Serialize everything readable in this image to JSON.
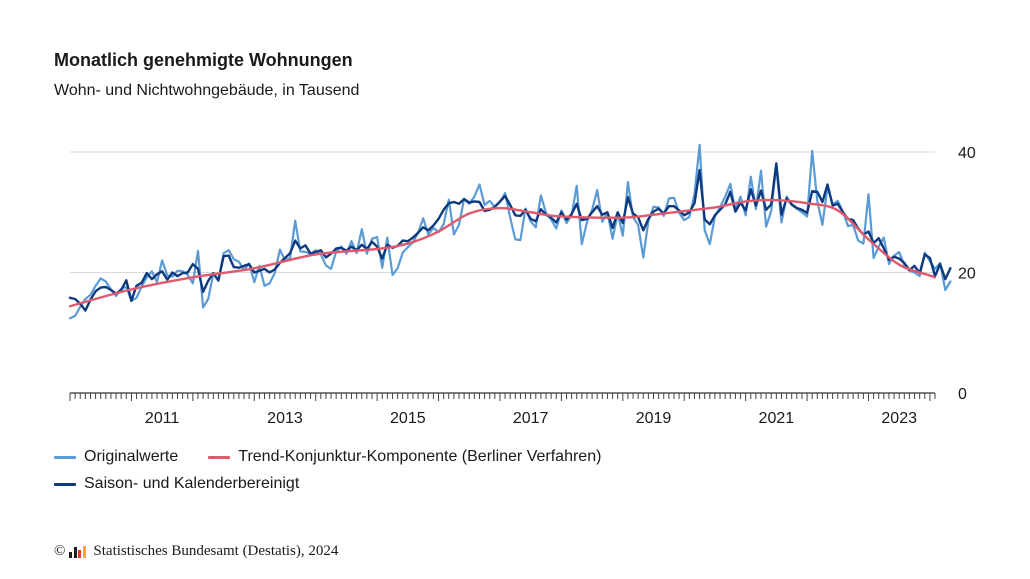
{
  "title": "Monatlich genehmigte Wohnungen",
  "subtitle": "Wohn- und Nichtwohngebäude, in Tausend",
  "footer": {
    "copyright_symbol": "©",
    "source": "Statistisches Bundesamt (Destatis), 2024"
  },
  "colors": {
    "original": "#5b9bd5",
    "trend": "#e05a6e",
    "adjusted": "#0d3a7e",
    "grid": "#d9d9d9",
    "logo": [
      "#e3342f",
      "#f2b01e",
      "#1d1d1d"
    ]
  },
  "chart_data": {
    "type": "line",
    "title": "Monatlich genehmigte Wohnungen",
    "subtitle": "Wohn- und Nichtwohngebäude, in Tausend",
    "x_range": [
      "2010-01",
      "2024-02"
    ],
    "xticks": [
      "2011",
      "2013",
      "2015",
      "2017",
      "2019",
      "2021",
      "2023"
    ],
    "yticks": [
      0,
      20,
      40
    ],
    "ylim": [
      0,
      40
    ],
    "grid": true,
    "y_axis_position": "right",
    "legend_position": "bottom",
    "series": [
      {
        "name": "Originalwerte",
        "color": "#5b9bd5",
        "width": 2.2,
        "values": [
          12.4,
          12.8,
          14.3,
          15.6,
          16.3,
          17.8,
          19.0,
          18.5,
          17.2,
          16.1,
          17.3,
          17.6,
          15.3,
          15.8,
          17.7,
          19.2,
          20.2,
          18.4,
          22.0,
          19.5,
          19.3,
          20.3,
          20.2,
          19.6,
          18.2,
          23.6,
          14.2,
          15.6,
          19.8,
          18.6,
          23.2,
          23.7,
          22.2,
          21.8,
          20.4,
          21.5,
          18.4,
          21.1,
          17.8,
          18.2,
          19.9,
          23.8,
          22.0,
          22.4,
          28.6,
          23.5,
          23.4,
          23.1,
          23.7,
          23.0,
          21.2,
          20.6,
          23.5,
          24.3,
          23.1,
          25.2,
          23.2,
          27.2,
          23.1,
          25.6,
          25.9,
          20.8,
          25.8,
          19.6,
          20.7,
          23.3,
          24.2,
          25.0,
          26.6,
          29.0,
          26.3,
          27.4,
          26.7,
          28.0,
          32.1,
          26.3,
          27.9,
          32.2,
          31.4,
          32.6,
          34.6,
          31.2,
          31.9,
          30.9,
          31.7,
          33.2,
          29.1,
          25.5,
          25.4,
          30.6,
          28.5,
          27.5,
          32.8,
          29.9,
          28.8,
          27.3,
          30.3,
          28.2,
          29.5,
          34.4,
          24.7,
          28.4,
          30.4,
          33.7,
          28.4,
          30.0,
          25.6,
          29.8,
          26.1,
          35.0,
          29.2,
          27.9,
          22.5,
          28.6,
          30.9,
          30.8,
          29.4,
          32.3,
          32.4,
          29.9,
          28.7,
          29.2,
          33.0,
          41.2,
          27.0,
          24.7,
          29.3,
          30.8,
          32.6,
          34.7,
          30.4,
          32.6,
          29.5,
          35.9,
          30.5,
          36.9,
          27.6,
          30.2,
          37.8,
          28.3,
          32.6,
          31.2,
          30.6,
          30.0,
          29.3,
          40.2,
          31.9,
          27.9,
          34.2,
          31.3,
          31.9,
          30.1,
          27.7,
          27.9,
          25.3,
          24.8,
          33.0,
          22.4,
          24.3,
          25.8,
          21.4,
          22.8,
          23.4,
          21.2,
          20.3,
          20.0,
          19.4,
          23.3,
          21.9,
          20.6,
          21.6,
          17.1,
          18.5
        ]
      },
      {
        "name": "Trend-Konjunktur-Komponente (Berliner Verfahren)",
        "color": "#e05a6e",
        "width": 2.4,
        "points": [
          [
            2010.0,
            14.4
          ],
          [
            2011.0,
            17.2
          ],
          [
            2012.0,
            19.2
          ],
          [
            2013.0,
            20.7
          ],
          [
            2014.0,
            23.0
          ],
          [
            2015.0,
            23.9
          ],
          [
            2015.5,
            24.8
          ],
          [
            2016.0,
            26.8
          ],
          [
            2016.5,
            29.8
          ],
          [
            2017.0,
            30.7
          ],
          [
            2017.5,
            30.0
          ],
          [
            2018.0,
            29.3
          ],
          [
            2019.0,
            29.1
          ],
          [
            2019.5,
            29.6
          ],
          [
            2020.0,
            30.2
          ],
          [
            2020.5,
            30.8
          ],
          [
            2021.0,
            31.8
          ],
          [
            2021.5,
            32.0
          ],
          [
            2022.0,
            31.5
          ],
          [
            2022.5,
            30.3
          ],
          [
            2023.0,
            25.5
          ],
          [
            2023.5,
            21.3
          ],
          [
            2024.0,
            19.5
          ],
          [
            2024.08,
            19.2
          ]
        ]
      },
      {
        "name": "Saison- und Kalenderbereinigt",
        "color": "#0d3a7e",
        "width": 2.4,
        "values": [
          15.8,
          15.6,
          14.8,
          13.7,
          15.5,
          16.9,
          17.5,
          17.6,
          17.1,
          16.5,
          17.1,
          18.7,
          15.3,
          17.8,
          18.3,
          19.9,
          18.9,
          19.7,
          20.2,
          18.8,
          20.0,
          19.4,
          19.9,
          20.0,
          21.4,
          20.6,
          16.8,
          18.6,
          19.9,
          18.7,
          22.7,
          22.8,
          20.9,
          20.8,
          21.1,
          21.4,
          20.0,
          20.3,
          20.6,
          20.0,
          20.5,
          21.6,
          22.4,
          23.2,
          25.3,
          24.0,
          24.5,
          23.1,
          23.4,
          23.7,
          22.5,
          23.1,
          24.0,
          24.1,
          23.6,
          24.3,
          23.7,
          24.6,
          23.9,
          25.1,
          24.3,
          22.3,
          24.6,
          24.1,
          24.4,
          25.3,
          25.2,
          25.8,
          26.6,
          27.5,
          27.0,
          27.8,
          28.9,
          30.4,
          31.5,
          31.7,
          31.4,
          32.2,
          31.6,
          31.8,
          31.7,
          30.2,
          30.4,
          30.9,
          31.8,
          32.7,
          31.2,
          29.5,
          29.4,
          30.4,
          28.9,
          28.5,
          30.5,
          29.6,
          29.1,
          28.3,
          30.0,
          28.8,
          29.7,
          31.4,
          28.7,
          28.9,
          30.0,
          31.0,
          29.6,
          30.0,
          27.4,
          30.0,
          28.2,
          32.5,
          29.8,
          29.2,
          27.0,
          28.9,
          30.1,
          30.6,
          29.8,
          31.0,
          31.0,
          30.3,
          29.5,
          30.0,
          31.5,
          37.0,
          28.8,
          28.0,
          29.5,
          30.4,
          31.3,
          33.4,
          30.1,
          31.6,
          30.3,
          33.8,
          31.1,
          33.6,
          30.4,
          31.3,
          38.1,
          29.6,
          32.3,
          31.3,
          30.7,
          30.4,
          29.9,
          33.5,
          33.4,
          31.7,
          34.6,
          31.1,
          31.4,
          30.0,
          28.9,
          28.7,
          27.3,
          26.3,
          26.8,
          24.9,
          25.7,
          24.0,
          22.1,
          22.6,
          22.3,
          21.6,
          20.4,
          21.1,
          19.9,
          23.0,
          22.4,
          19.4,
          21.4,
          18.9,
          20.7
        ]
      }
    ],
    "legend": [
      {
        "label": "Originalwerte",
        "color": "#5b9bd5"
      },
      {
        "label": "Trend-Konjunktur-Komponente (Berliner Verfahren)",
        "color": "#e05a6e"
      },
      {
        "label": "Saison- und Kalenderbereinigt",
        "color": "#0d3a7e"
      }
    ]
  }
}
